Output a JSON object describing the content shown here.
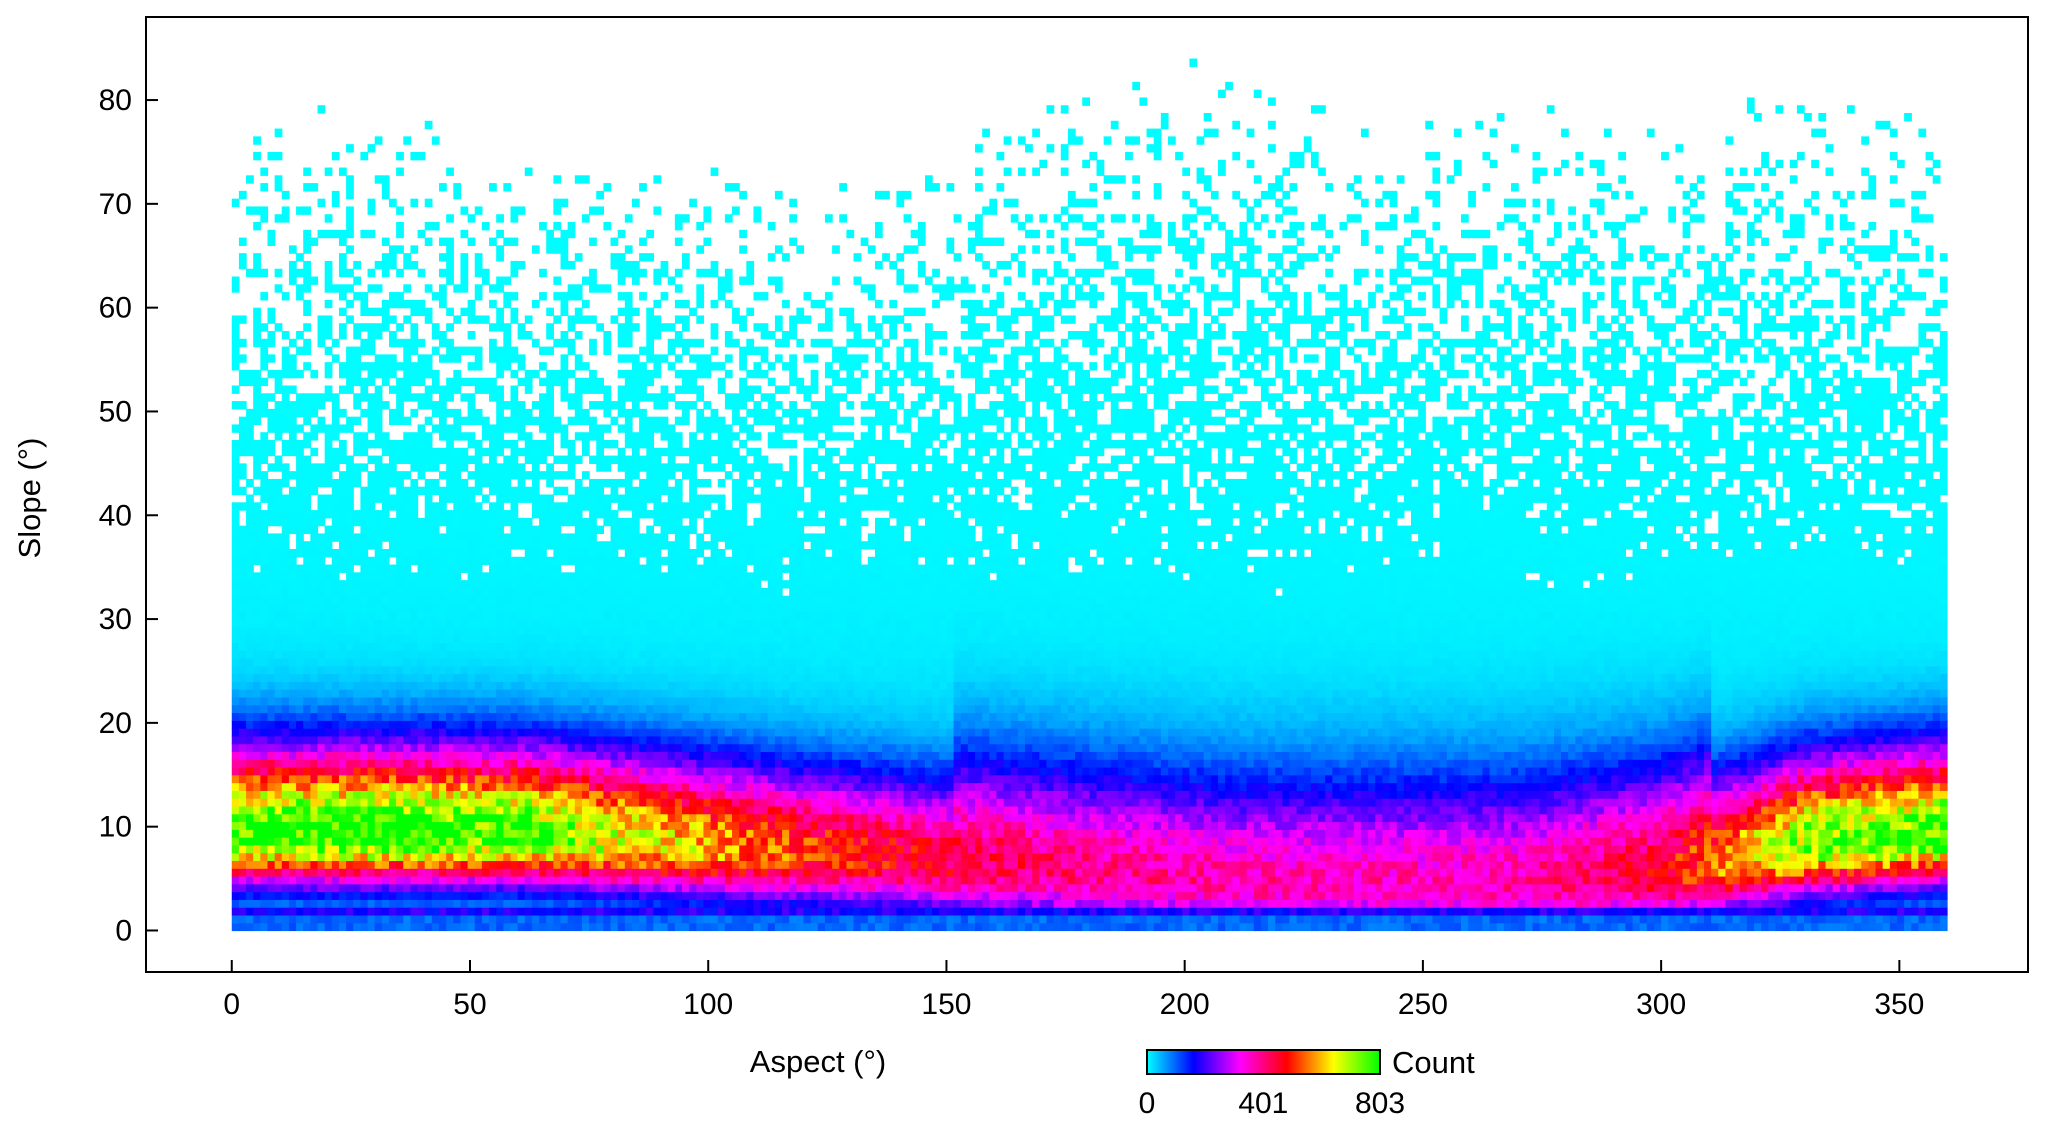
{
  "chart_data": {
    "type": "heatmap",
    "xlabel": "Aspect (°)",
    "ylabel": "Slope (°)",
    "xlim": [
      -18,
      377
    ],
    "ylim": [
      -4,
      88
    ],
    "x_ticks": [
      0,
      50,
      100,
      150,
      200,
      250,
      300,
      350
    ],
    "y_ticks": [
      0,
      10,
      20,
      30,
      40,
      50,
      60,
      70,
      80
    ],
    "x_tick_labels": [
      "0",
      "50",
      "100",
      "150",
      "200",
      "250",
      "300",
      "350"
    ],
    "y_tick_labels": [
      "0",
      "10",
      "20",
      "30",
      "40",
      "50",
      "60",
      "70",
      "80"
    ],
    "x_data_range": [
      0,
      360
    ],
    "y_data_range": [
      0,
      84
    ],
    "colorbar": {
      "label": "Count",
      "min": 0,
      "max": 803,
      "tick_values": [
        0,
        401,
        803
      ],
      "tick_labels": [
        "0",
        "401",
        "803"
      ],
      "colormap": [
        "#00ffff",
        "#0000ff",
        "#ff00ff",
        "#ff0000",
        "#ffff00",
        "#00ff00"
      ]
    },
    "ridge_slope_by_aspect": {
      "aspect": [
        0,
        30,
        60,
        90,
        120,
        150,
        180,
        210,
        240,
        270,
        300,
        330,
        360
      ],
      "slope": [
        9,
        9,
        9,
        8,
        7,
        6,
        5,
        4,
        4,
        4,
        5,
        8,
        9
      ]
    },
    "peak_count_by_aspect": {
      "aspect": [
        0,
        30,
        60,
        90,
        120,
        150,
        180,
        210,
        240,
        270,
        300,
        330,
        360
      ],
      "count": [
        780,
        800,
        760,
        620,
        500,
        430,
        380,
        360,
        350,
        360,
        450,
        720,
        780
      ]
    },
    "upper_extent_by_aspect": {
      "aspect": [
        0,
        30,
        60,
        90,
        120,
        150,
        180,
        210,
        240,
        270,
        300,
        330,
        360
      ],
      "slope": [
        72,
        74,
        70,
        68,
        66,
        70,
        77,
        78,
        72,
        74,
        72,
        76,
        75
      ]
    },
    "grid": false
  }
}
